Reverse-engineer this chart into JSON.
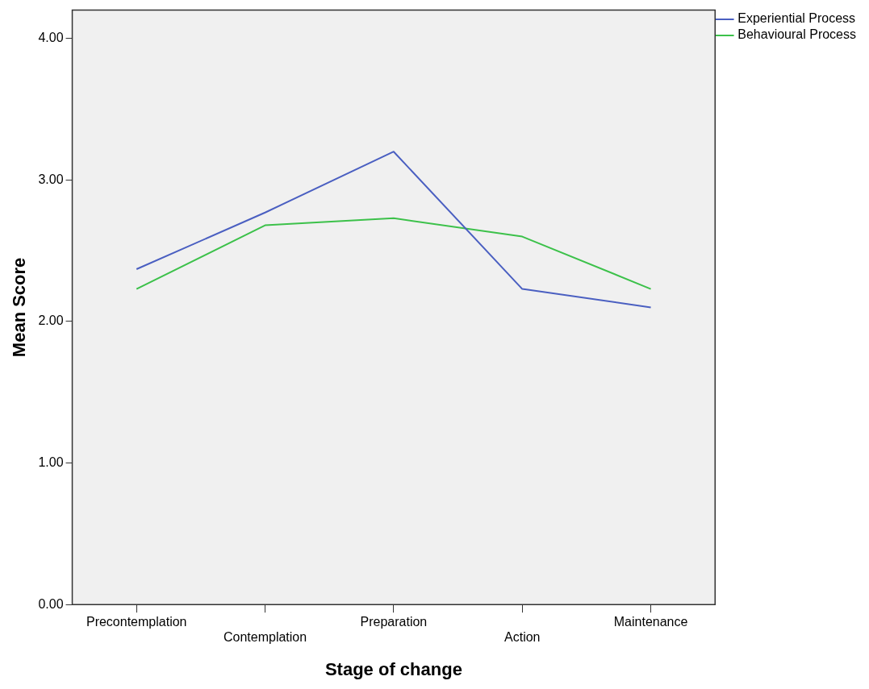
{
  "chart_data": {
    "type": "line",
    "xlabel": "Stage of change",
    "ylabel": "Mean Score",
    "categories": [
      "Precontemplation",
      "Contemplation",
      "Preparation",
      "Action",
      "Maintenance"
    ],
    "series": [
      {
        "name": "Experiential Process",
        "color": "#4a5fc1",
        "values": [
          2.37,
          2.77,
          3.2,
          2.23,
          2.1
        ]
      },
      {
        "name": "Behavioural Process",
        "color": "#3cc14a",
        "values": [
          2.23,
          2.68,
          2.73,
          2.6,
          2.23
        ]
      }
    ],
    "ylim": [
      0,
      4.2
    ],
    "yticks": [
      {
        "value": 0,
        "label": "0.00"
      },
      {
        "value": 1,
        "label": "1.00"
      },
      {
        "value": 2,
        "label": "2.00"
      },
      {
        "value": 3,
        "label": "3.00"
      },
      {
        "value": 4,
        "label": "4.00"
      }
    ],
    "grid": false,
    "legend": "top right",
    "marker": "none",
    "line_style": "solid"
  }
}
